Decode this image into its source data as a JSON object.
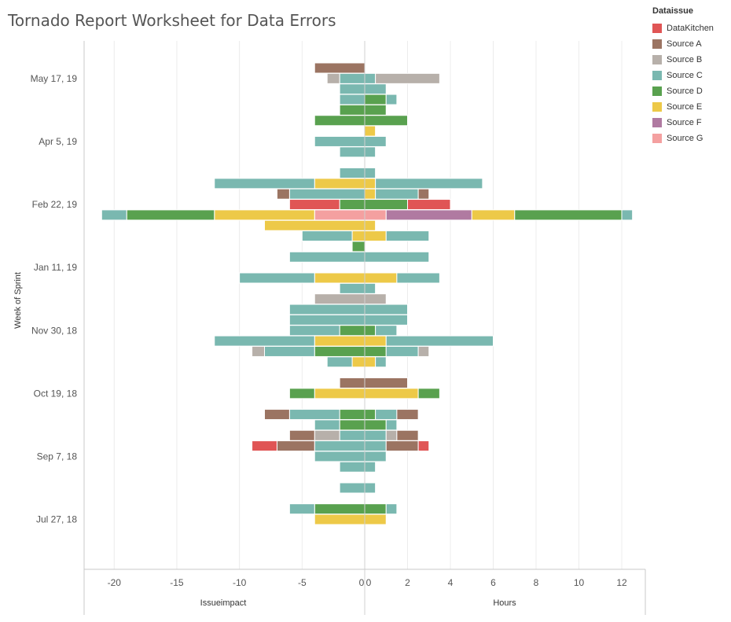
{
  "title": "Tornado Report Worksheet for Data Errors",
  "legend": {
    "title": "Dataissue",
    "items": [
      {
        "label": "DataKitchen",
        "color": "#e05555"
      },
      {
        "label": "Source A",
        "color": "#9b7462"
      },
      {
        "label": "Source B",
        "color": "#b7b0aa"
      },
      {
        "label": "Source C",
        "color": "#7ab8b0"
      },
      {
        "label": "Source D",
        "color": "#59a14f"
      },
      {
        "label": "Source E",
        "color": "#edc948"
      },
      {
        "label": "Source F",
        "color": "#b07aa1"
      },
      {
        "label": "Source G",
        "color": "#f4a0a0"
      }
    ]
  },
  "chart_data": {
    "type": "bar",
    "orientation": "horizontal",
    "stacked": true,
    "ylabel": "Week of Sprint",
    "y_tick_labels": [
      "May 17, 19",
      "Apr 5, 19",
      "Feb 22, 19",
      "Jan 11, 19",
      "Nov 30, 18",
      "Oct 19, 18",
      "Sep 7, 18",
      "Jul 27, 18"
    ],
    "left": {
      "xlabel": "Issueimpact",
      "ticks": [
        -20,
        -15,
        -10,
        -5,
        0
      ],
      "xlim": [
        -22.4,
        0
      ]
    },
    "right": {
      "xlabel": "Hours",
      "ticks": [
        0,
        2,
        4,
        6,
        8,
        10,
        12
      ],
      "xlim": [
        0,
        13.1
      ]
    },
    "rows": [
      {
        "left": [
          {
            "s": "Source A",
            "v": 4
          }
        ],
        "right": []
      },
      {
        "left": [
          {
            "s": "Source C",
            "v": 2
          },
          {
            "s": "Source B",
            "v": 1
          }
        ],
        "right": [
          {
            "s": "Source C",
            "v": 0.5
          },
          {
            "s": "Source B",
            "v": 3
          }
        ]
      },
      {
        "left": [
          {
            "s": "Source C",
            "v": 2
          }
        ],
        "right": [
          {
            "s": "Source C",
            "v": 1
          }
        ]
      },
      {
        "left": [
          {
            "s": "Source C",
            "v": 2
          }
        ],
        "right": [
          {
            "s": "Source D",
            "v": 1
          },
          {
            "s": "Source C",
            "v": 0.5
          }
        ]
      },
      {
        "left": [
          {
            "s": "Source D",
            "v": 2
          }
        ],
        "right": [
          {
            "s": "Source D",
            "v": 1
          }
        ]
      },
      {
        "left": [
          {
            "s": "Source D",
            "v": 4
          }
        ],
        "right": [
          {
            "s": "Source D",
            "v": 2
          }
        ]
      },
      {
        "left": [],
        "right": [
          {
            "s": "Source E",
            "v": 0.5
          }
        ]
      },
      {
        "left": [
          {
            "s": "Source C",
            "v": 4
          }
        ],
        "right": [
          {
            "s": "Source C",
            "v": 1
          }
        ]
      },
      {
        "left": [
          {
            "s": "Source C",
            "v": 2
          }
        ],
        "right": [
          {
            "s": "Source C",
            "v": 0.5
          }
        ]
      },
      {
        "left": [],
        "right": []
      },
      {
        "left": [
          {
            "s": "Source C",
            "v": 2
          }
        ],
        "right": [
          {
            "s": "Source C",
            "v": 0.5
          }
        ]
      },
      {
        "left": [
          {
            "s": "Source E",
            "v": 4
          },
          {
            "s": "Source C",
            "v": 8
          }
        ],
        "right": [
          {
            "s": "Source E",
            "v": 0.5
          },
          {
            "s": "Source C",
            "v": 5
          }
        ]
      },
      {
        "left": [
          {
            "s": "Source C",
            "v": 6
          },
          {
            "s": "Source A",
            "v": 1
          }
        ],
        "right": [
          {
            "s": "Source E",
            "v": 0.5
          },
          {
            "s": "Source C",
            "v": 2
          },
          {
            "s": "Source A",
            "v": 0.5
          }
        ]
      },
      {
        "left": [
          {
            "s": "Source D",
            "v": 2
          },
          {
            "s": "DataKitchen",
            "v": 4
          }
        ],
        "right": [
          {
            "s": "Source D",
            "v": 2
          },
          {
            "s": "DataKitchen",
            "v": 2
          }
        ]
      },
      {
        "left": [
          {
            "s": "Source G",
            "v": 4
          },
          {
            "s": "Source E",
            "v": 8
          },
          {
            "s": "Source D",
            "v": 7
          },
          {
            "s": "Source C",
            "v": 2
          }
        ],
        "right": [
          {
            "s": "Source G",
            "v": 1
          },
          {
            "s": "Source F",
            "v": 4
          },
          {
            "s": "Source E",
            "v": 2
          },
          {
            "s": "Source D",
            "v": 5
          },
          {
            "s": "Source C",
            "v": 0.5
          }
        ]
      },
      {
        "left": [
          {
            "s": "Source E",
            "v": 8
          }
        ],
        "right": [
          {
            "s": "Source E",
            "v": 0.5
          }
        ]
      },
      {
        "left": [
          {
            "s": "Source E",
            "v": 1
          },
          {
            "s": "Source C",
            "v": 4
          }
        ],
        "right": [
          {
            "s": "Source E",
            "v": 1
          },
          {
            "s": "Source C",
            "v": 2
          }
        ]
      },
      {
        "left": [
          {
            "s": "Source D",
            "v": 1
          }
        ],
        "right": []
      },
      {
        "left": [
          {
            "s": "Source C",
            "v": 6
          }
        ],
        "right": [
          {
            "s": "Source C",
            "v": 3
          }
        ]
      },
      {
        "left": [],
        "right": []
      },
      {
        "left": [
          {
            "s": "Source E",
            "v": 4
          },
          {
            "s": "Source C",
            "v": 6
          }
        ],
        "right": [
          {
            "s": "Source E",
            "v": 1.5
          },
          {
            "s": "Source C",
            "v": 2
          }
        ]
      },
      {
        "left": [
          {
            "s": "Source C",
            "v": 2
          }
        ],
        "right": [
          {
            "s": "Source C",
            "v": 0.5
          }
        ]
      },
      {
        "left": [
          {
            "s": "Source B",
            "v": 4
          }
        ],
        "right": [
          {
            "s": "Source B",
            "v": 1
          }
        ]
      },
      {
        "left": [
          {
            "s": "Source C",
            "v": 6
          }
        ],
        "right": [
          {
            "s": "Source C",
            "v": 2
          }
        ]
      },
      {
        "left": [
          {
            "s": "Source C",
            "v": 6
          }
        ],
        "right": [
          {
            "s": "Source C",
            "v": 2
          }
        ]
      },
      {
        "left": [
          {
            "s": "Source D",
            "v": 2
          },
          {
            "s": "Source C",
            "v": 4
          }
        ],
        "right": [
          {
            "s": "Source D",
            "v": 0.5
          },
          {
            "s": "Source C",
            "v": 1
          }
        ]
      },
      {
        "left": [
          {
            "s": "Source E",
            "v": 4
          },
          {
            "s": "Source C",
            "v": 8
          }
        ],
        "right": [
          {
            "s": "Source E",
            "v": 1
          },
          {
            "s": "Source C",
            "v": 5
          }
        ]
      },
      {
        "left": [
          {
            "s": "Source D",
            "v": 4
          },
          {
            "s": "Source C",
            "v": 4
          },
          {
            "s": "Source B",
            "v": 1
          }
        ],
        "right": [
          {
            "s": "Source D",
            "v": 1
          },
          {
            "s": "Source C",
            "v": 1.5
          },
          {
            "s": "Source B",
            "v": 0.5
          }
        ]
      },
      {
        "left": [
          {
            "s": "Source E",
            "v": 1
          },
          {
            "s": "Source C",
            "v": 2
          }
        ],
        "right": [
          {
            "s": "Source E",
            "v": 0.5
          },
          {
            "s": "Source C",
            "v": 0.5
          }
        ]
      },
      {
        "left": [],
        "right": []
      },
      {
        "left": [
          {
            "s": "Source A",
            "v": 2
          }
        ],
        "right": [
          {
            "s": "Source A",
            "v": 2
          }
        ]
      },
      {
        "left": [
          {
            "s": "Source E",
            "v": 4
          },
          {
            "s": "Source D",
            "v": 2
          }
        ],
        "right": [
          {
            "s": "Source E",
            "v": 2.5
          },
          {
            "s": "Source D",
            "v": 1
          }
        ]
      },
      {
        "left": [],
        "right": []
      },
      {
        "left": [
          {
            "s": "Source D",
            "v": 2
          },
          {
            "s": "Source C",
            "v": 4
          },
          {
            "s": "Source A",
            "v": 2
          }
        ],
        "right": [
          {
            "s": "Source D",
            "v": 0.5
          },
          {
            "s": "Source C",
            "v": 1
          },
          {
            "s": "Source A",
            "v": 1
          }
        ]
      },
      {
        "left": [
          {
            "s": "Source D",
            "v": 2
          },
          {
            "s": "Source C",
            "v": 2
          }
        ],
        "right": [
          {
            "s": "Source D",
            "v": 1
          },
          {
            "s": "Source C",
            "v": 0.5
          }
        ]
      },
      {
        "left": [
          {
            "s": "Source C",
            "v": 2
          },
          {
            "s": "Source B",
            "v": 2
          },
          {
            "s": "Source A",
            "v": 2
          }
        ],
        "right": [
          {
            "s": "Source C",
            "v": 1
          },
          {
            "s": "Source B",
            "v": 0.5
          },
          {
            "s": "Source A",
            "v": 1
          }
        ]
      },
      {
        "left": [
          {
            "s": "Source C",
            "v": 4
          },
          {
            "s": "Source A",
            "v": 3
          },
          {
            "s": "DataKitchen",
            "v": 2
          }
        ],
        "right": [
          {
            "s": "Source C",
            "v": 1
          },
          {
            "s": "Source A",
            "v": 1.5
          },
          {
            "s": "DataKitchen",
            "v": 0.5
          }
        ]
      },
      {
        "left": [
          {
            "s": "Source C",
            "v": 4
          }
        ],
        "right": [
          {
            "s": "Source C",
            "v": 1
          }
        ]
      },
      {
        "left": [
          {
            "s": "Source C",
            "v": 2
          }
        ],
        "right": [
          {
            "s": "Source C",
            "v": 0.5
          }
        ]
      },
      {
        "left": [],
        "right": []
      },
      {
        "left": [
          {
            "s": "Source C",
            "v": 2
          }
        ],
        "right": [
          {
            "s": "Source C",
            "v": 0.5
          }
        ]
      },
      {
        "left": [],
        "right": []
      },
      {
        "left": [
          {
            "s": "Source D",
            "v": 4
          },
          {
            "s": "Source C",
            "v": 2
          }
        ],
        "right": [
          {
            "s": "Source D",
            "v": 1
          },
          {
            "s": "Source C",
            "v": 0.5
          }
        ]
      },
      {
        "left": [
          {
            "s": "Source E",
            "v": 4
          }
        ],
        "right": [
          {
            "s": "Source E",
            "v": 1
          }
        ]
      }
    ]
  }
}
